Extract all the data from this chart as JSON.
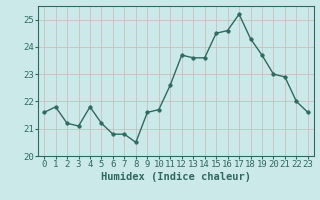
{
  "x": [
    0,
    1,
    2,
    3,
    4,
    5,
    6,
    7,
    8,
    9,
    10,
    11,
    12,
    13,
    14,
    15,
    16,
    17,
    18,
    19,
    20,
    21,
    22,
    23
  ],
  "y": [
    21.6,
    21.8,
    21.2,
    21.1,
    21.8,
    21.2,
    20.8,
    20.8,
    20.5,
    21.6,
    21.7,
    22.6,
    23.7,
    23.6,
    23.6,
    24.5,
    24.6,
    25.2,
    24.3,
    23.7,
    23.0,
    22.9,
    22.0,
    21.6
  ],
  "line_color": "#2e6b5e",
  "marker": "o",
  "marker_size": 2.5,
  "linewidth": 1.0,
  "xlabel": "Humidex (Indice chaleur)",
  "ylabel": "",
  "ylim": [
    20,
    25.5
  ],
  "xlim": [
    -0.5,
    23.5
  ],
  "yticks": [
    20,
    21,
    22,
    23,
    24,
    25
  ],
  "xtick_labels": [
    "0",
    "1",
    "2",
    "3",
    "4",
    "5",
    "6",
    "7",
    "8",
    "9",
    "10",
    "11",
    "12",
    "13",
    "14",
    "15",
    "16",
    "17",
    "18",
    "19",
    "20",
    "21",
    "22",
    "23"
  ],
  "bg_color": "#cce9e9",
  "grid_color": "#c8b8b8",
  "tick_color": "#2e6b5e",
  "xlabel_fontsize": 7.5,
  "tick_fontsize": 6.5
}
